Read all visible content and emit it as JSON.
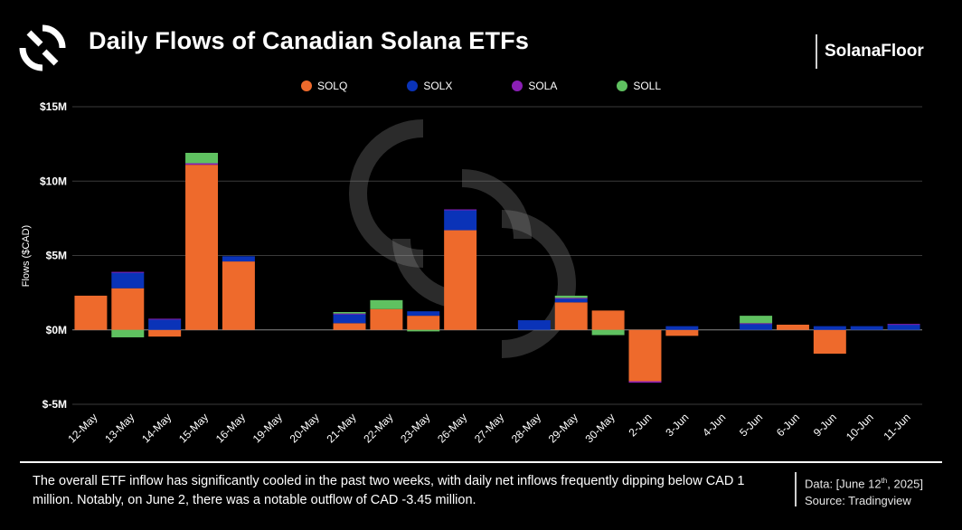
{
  "header": {
    "title": "Daily Flows of Canadian Solana ETFs",
    "brand": "SolanaFloor"
  },
  "footer": {
    "summary": "The overall ETF inflow has significantly cooled in the past two weeks, with daily net inflows frequently dipping below CAD 1 million. Notably, on June 2, there was a notable outflow of CAD -3.45 million.",
    "data_prefix": "Data: [June 12",
    "data_sup": "th",
    "data_suffix": ", 2025]",
    "source": "Source: Tradingview"
  },
  "colors": {
    "SOLQ": "#ee6a2c",
    "SOLX": "#0a33b8",
    "SOLA": "#8a1fb5",
    "SOLL": "#5fc160"
  },
  "chart_data": {
    "type": "bar",
    "stacked": true,
    "title": "Daily Flows of Canadian Solana ETFs",
    "xlabel": "",
    "ylabel": "Flows ($CAD)",
    "ylim": [
      -5,
      15
    ],
    "unit": "million CAD",
    "y_ticks": [
      {
        "value": 15,
        "label": "$15M"
      },
      {
        "value": 10,
        "label": "$10M"
      },
      {
        "value": 5,
        "label": "$5M"
      },
      {
        "value": 0,
        "label": "$0M"
      },
      {
        "value": -5,
        "label": "$-5M"
      }
    ],
    "grid": true,
    "legend_position": "top-center",
    "categories": [
      "12-May",
      "13-May",
      "14-May",
      "15-May",
      "16-May",
      "19-May",
      "20-May",
      "21-May",
      "22-May",
      "23-May",
      "26-May",
      "27-May",
      "28-May",
      "29-May",
      "30-May",
      "2-Jun",
      "3-Jun",
      "4-Jun",
      "5-Jun",
      "6-Jun",
      "9-Jun",
      "10-Jun",
      "11-Jun"
    ],
    "series": [
      {
        "name": "SOLQ",
        "values": [
          2.3,
          2.8,
          -0.45,
          11.1,
          4.6,
          0,
          0,
          0.45,
          1.4,
          0.95,
          6.7,
          0,
          0,
          1.85,
          1.3,
          -3.45,
          -0.4,
          0,
          0,
          0.35,
          -1.6,
          0,
          0
        ]
      },
      {
        "name": "SOLX",
        "values": [
          0,
          1.05,
          0.7,
          0,
          0.35,
          0,
          0,
          0.6,
          0,
          0.3,
          1.35,
          0,
          0.65,
          0.25,
          0,
          0,
          0.25,
          0,
          0.4,
          0,
          0.25,
          0.25,
          0.35
        ]
      },
      {
        "name": "SOLA",
        "values": [
          0,
          0.05,
          0.05,
          0.1,
          0,
          0,
          0,
          0.05,
          0,
          0,
          0.05,
          0,
          0,
          0.05,
          0,
          -0.1,
          0,
          0,
          0.05,
          0,
          0,
          0,
          0.05
        ]
      },
      {
        "name": "SOLL",
        "values": [
          0,
          -0.5,
          0,
          0.7,
          0,
          0,
          0,
          0.1,
          0.6,
          -0.1,
          0,
          0,
          0,
          0.15,
          -0.35,
          0,
          0,
          0,
          0.5,
          0,
          0,
          0,
          0
        ]
      }
    ]
  }
}
